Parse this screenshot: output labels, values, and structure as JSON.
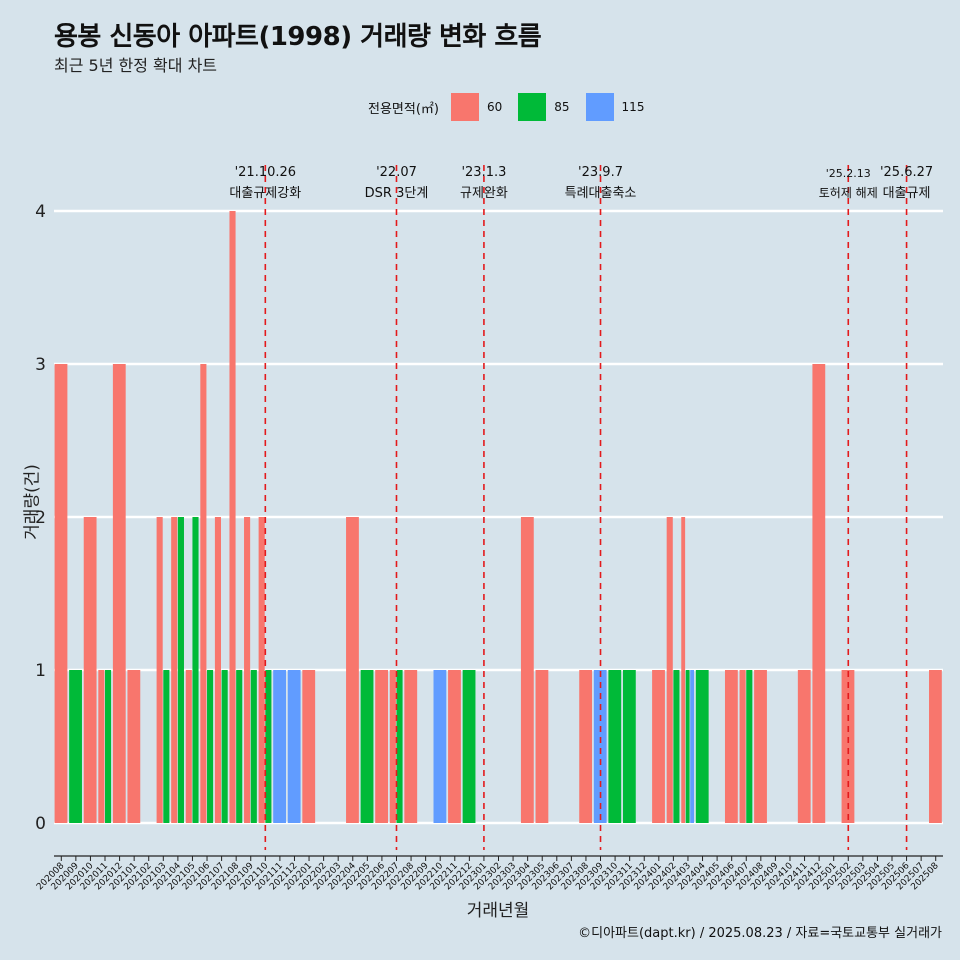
{
  "title": "용봉 신동아 아파트(1998) 거래량 변화 흐름",
  "subtitle": "최근 5년 한정 확대 차트",
  "caption": "©디아파트(dapt.kr) / 2025.08.23 / 자료=국토교통부 실거래가",
  "legend": {
    "title": "전용면적(㎡)",
    "items": [
      {
        "label": "60",
        "color": "#f8766d"
      },
      {
        "label": "85",
        "color": "#00ba38"
      },
      {
        "label": "115",
        "color": "#619cff"
      }
    ]
  },
  "chart_data": {
    "type": "bar",
    "title": "용봉 신동아 아파트(1998) 거래량 변화 흐름",
    "subtitle": "최근 5년 한정 확대 차트",
    "xlabel": "거래년월",
    "ylabel": "거래량(건)",
    "ylim": [
      0,
      4
    ],
    "y_ticks": [
      0,
      1,
      2,
      3,
      4
    ],
    "grid": true,
    "legend_position": "top",
    "categories": [
      "202008",
      "202009",
      "202010",
      "202011",
      "202012",
      "202101",
      "202102",
      "202103",
      "202104",
      "202105",
      "202106",
      "202107",
      "202108",
      "202109",
      "202110",
      "202111",
      "202112",
      "202201",
      "202202",
      "202203",
      "202204",
      "202205",
      "202206",
      "202207",
      "202208",
      "202209",
      "202210",
      "202211",
      "202212",
      "202301",
      "202302",
      "202303",
      "202304",
      "202305",
      "202306",
      "202307",
      "202308",
      "202309",
      "202310",
      "202311",
      "202312",
      "202401",
      "202402",
      "202403",
      "202404",
      "202405",
      "202406",
      "202407",
      "202408",
      "202409",
      "202410",
      "202411",
      "202412",
      "202501",
      "202502",
      "202503",
      "202504",
      "202505",
      "202506",
      "202507",
      "202508"
    ],
    "series": [
      {
        "name": "60",
        "color": "#f8766d",
        "values": [
          3,
          0,
          2,
          1,
          3,
          1,
          0,
          2,
          2,
          1,
          3,
          2,
          4,
          2,
          2,
          0,
          0,
          1,
          0,
          0,
          2,
          0,
          1,
          1,
          1,
          0,
          0,
          1,
          0,
          0,
          0,
          0,
          2,
          1,
          0,
          0,
          1,
          0,
          0,
          0,
          0,
          1,
          2,
          2,
          0,
          0,
          1,
          1,
          1,
          0,
          0,
          1,
          3,
          0,
          1,
          0,
          0,
          0,
          0,
          0,
          1
        ]
      },
      {
        "name": "85",
        "color": "#00ba38",
        "values": [
          0,
          1,
          0,
          1,
          0,
          0,
          0,
          1,
          2,
          2,
          1,
          1,
          1,
          1,
          1,
          0,
          0,
          0,
          0,
          0,
          0,
          1,
          0,
          1,
          0,
          0,
          0,
          0,
          1,
          0,
          0,
          0,
          0,
          0,
          0,
          0,
          0,
          0,
          1,
          1,
          0,
          0,
          1,
          1,
          1,
          0,
          0,
          1,
          0,
          0,
          0,
          0,
          0,
          0,
          0,
          0,
          0,
          0,
          0,
          0,
          0
        ]
      },
      {
        "name": "115",
        "color": "#619cff",
        "values": [
          0,
          0,
          0,
          0,
          0,
          0,
          0,
          0,
          0,
          0,
          0,
          0,
          0,
          0,
          0,
          1,
          1,
          0,
          0,
          0,
          0,
          0,
          0,
          0,
          0,
          0,
          1,
          0,
          0,
          0,
          0,
          0,
          0,
          0,
          0,
          0,
          0,
          1,
          0,
          0,
          0,
          0,
          0,
          1,
          0,
          0,
          0,
          0,
          0,
          0,
          0,
          0,
          0,
          0,
          0,
          0,
          0,
          0,
          0,
          0,
          0
        ]
      }
    ],
    "annotations": [
      {
        "date": "'21.10.26",
        "label": "대출규제강화",
        "month": "202110"
      },
      {
        "date": "'22.07",
        "label": "DSR 3단계",
        "month": "202207"
      },
      {
        "date": "'23.1.3",
        "label": "규제완화",
        "month": "202301"
      },
      {
        "date": "'23.9.7",
        "label": "특례대출축소",
        "month": "202309"
      },
      {
        "date": "'25.2.13",
        "label": "토허제 해제",
        "month": "202502"
      },
      {
        "date": "'25.6.27",
        "label": "대출규제",
        "month": "202506"
      }
    ]
  }
}
